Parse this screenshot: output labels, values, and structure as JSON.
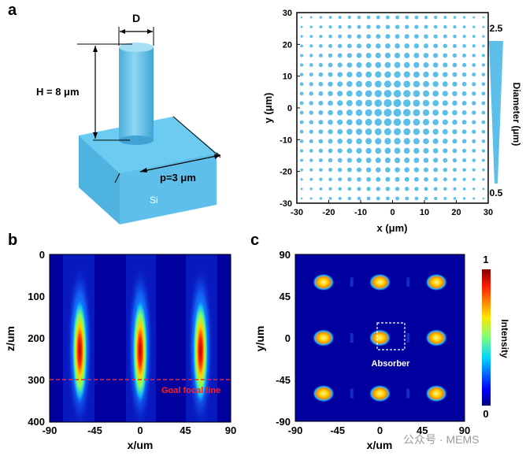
{
  "panel_labels": {
    "a": "a",
    "b": "b",
    "c": "c"
  },
  "panel_a_left": {
    "dimension_d": "D",
    "dimension_h": "H = 8 μm",
    "dimension_p": "p=3 μm",
    "substrate_label": "Si",
    "colors": {
      "pillar": "#63c3ea",
      "substrate_top": "#6ccbf0",
      "substrate_front": "#5ec0ea",
      "substrate_side": "#4fb3df"
    }
  },
  "panel_a_right": {
    "xlabel": "x (μm)",
    "ylabel": "y (μm)",
    "x_ticks": [
      "-30",
      "-20",
      "-10",
      "0",
      "10",
      "20",
      "30"
    ],
    "y_ticks": [
      "30",
      "20",
      "10",
      "0",
      "-10",
      "-20",
      "-30"
    ],
    "colorbar_label": "Diameter (μm)",
    "colorbar_max": "2.5",
    "colorbar_min": "0.5",
    "dot_color": "#5bbfea"
  },
  "panel_b": {
    "xlabel": "x/um",
    "ylabel": "z/um",
    "x_ticks": [
      "-90",
      "-45",
      "0",
      "45",
      "90"
    ],
    "y_ticks": [
      "0",
      "100",
      "200",
      "300",
      "400"
    ],
    "focal_line_label": "Goal focal line"
  },
  "panel_c": {
    "xlabel": "x/um",
    "ylabel": "y/um",
    "x_ticks": [
      "-90",
      "-45",
      "0",
      "45",
      "90"
    ],
    "y_ticks": [
      "90",
      "45",
      "0",
      "-45",
      "-90"
    ],
    "absorber_label": "Absorber",
    "colorbar_label": "Intensity",
    "colorbar_max": "1",
    "colorbar_min": "0"
  },
  "watermark": "公众号 · MEMS",
  "chart_data": [
    {
      "type": "scatter",
      "title": "",
      "xlabel": "x (μm)",
      "ylabel": "y (μm)",
      "xlim": [
        -30,
        30
      ],
      "ylim": [
        -30,
        30
      ],
      "grid_pitch": 3,
      "diameter_range": [
        0.5,
        2.5
      ],
      "series": [
        {
          "values": [
            {
              "x": -30,
              "y": 30,
              "d": 0.5
            },
            {
              "x": 0,
              "y": 0,
              "d": 2.5
            },
            {
              "x": 30,
              "y": -30,
              "d": 0.5
            }
          ]
        }
      ]
    },
    {
      "type": "heatmap",
      "xlabel": "x/um",
      "ylabel": "z/um",
      "xlim": [
        -90,
        90
      ],
      "ylim": [
        0,
        400
      ],
      "goal_focal_line_z": 300,
      "series": [
        {
          "values": [
            {
              "x": -60,
              "z_peak": 230,
              "intensity": 1
            },
            {
              "x": 0,
              "z_peak": 230,
              "intensity": 1
            },
            {
              "x": 60,
              "z_peak": 230,
              "intensity": 1
            }
          ]
        }
      ]
    },
    {
      "type": "heatmap",
      "xlabel": "x/um",
      "ylabel": "y/um",
      "xlim": [
        -90,
        90
      ],
      "ylim": [
        -90,
        90
      ],
      "color_range": [
        0,
        1
      ],
      "series": [
        {
          "values": [
            {
              "x": -60,
              "y": 60
            },
            {
              "x": 0,
              "y": 60
            },
            {
              "x": 60,
              "y": 60
            },
            {
              "x": -60,
              "y": 0
            },
            {
              "x": 0,
              "y": 0
            },
            {
              "x": 60,
              "y": 0
            },
            {
              "x": -60,
              "y": -60
            },
            {
              "x": 0,
              "y": -60
            },
            {
              "x": 60,
              "y": -60
            }
          ]
        }
      ]
    }
  ]
}
